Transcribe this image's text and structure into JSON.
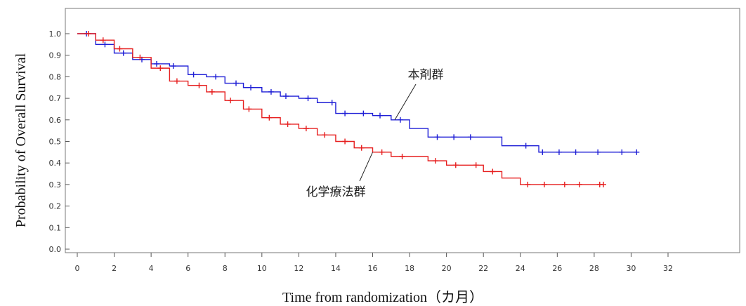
{
  "chart_data": {
    "type": "line",
    "chart_style": "step",
    "ylabel": "Probability of Overall Survival",
    "xlabel": "Time from randomization（カ月）",
    "xlim": [
      0,
      32
    ],
    "ylim": [
      0,
      1
    ],
    "x_ticks": [
      0,
      2,
      4,
      6,
      8,
      10,
      12,
      14,
      16,
      18,
      20,
      22,
      24,
      26,
      28,
      30,
      32
    ],
    "y_ticks": [
      0.0,
      0.1,
      0.2,
      0.3,
      0.4,
      0.5,
      0.6,
      0.7,
      0.8,
      0.9,
      1.0
    ],
    "y_tick_labels": [
      "0.0",
      "0.1",
      "0.2",
      "0.3",
      "0.4",
      "0.5",
      "0.6",
      "0.7",
      "0.8",
      "0.9",
      "1.0"
    ],
    "grid": false,
    "legend": "none",
    "series": [
      {
        "name": "本剤群",
        "color": "#1f1fd6",
        "x": [
          0,
          1,
          2,
          3,
          4,
          5,
          6,
          7,
          8,
          9,
          10,
          11,
          12,
          13,
          14,
          15,
          16,
          17,
          18,
          19,
          20,
          21,
          22,
          23,
          24,
          25,
          26,
          27,
          28,
          29,
          30.3
        ],
        "values": [
          1.0,
          0.95,
          0.91,
          0.88,
          0.86,
          0.85,
          0.81,
          0.8,
          0.77,
          0.75,
          0.73,
          0.71,
          0.7,
          0.68,
          0.63,
          0.63,
          0.62,
          0.6,
          0.56,
          0.52,
          0.52,
          0.52,
          0.52,
          0.48,
          0.48,
          0.45,
          0.45,
          0.45,
          0.45,
          0.45,
          0.45
        ],
        "censored_x": [
          0.5,
          1.5,
          2.5,
          3.5,
          4.3,
          5.2,
          6.3,
          7.5,
          8.6,
          9.4,
          10.5,
          11.3,
          12.5,
          13.8,
          14.5,
          15.5,
          16.4,
          17.5,
          19.5,
          20.4,
          21.3,
          24.3,
          25.2,
          26.1,
          27.0,
          28.2,
          29.5,
          30.3
        ]
      },
      {
        "name": "化学療法群",
        "color": "#e61e1e",
        "x": [
          0,
          1,
          2,
          3,
          4,
          5,
          6,
          7,
          8,
          9,
          10,
          11,
          12,
          13,
          14,
          15,
          16,
          17,
          18,
          19,
          20,
          21,
          22,
          23,
          24,
          25,
          26,
          27,
          28,
          28.5
        ],
        "values": [
          1.0,
          0.97,
          0.93,
          0.89,
          0.84,
          0.78,
          0.76,
          0.73,
          0.69,
          0.65,
          0.61,
          0.58,
          0.56,
          0.53,
          0.5,
          0.47,
          0.45,
          0.43,
          0.43,
          0.41,
          0.39,
          0.39,
          0.36,
          0.33,
          0.3,
          0.3,
          0.3,
          0.3,
          0.3,
          0.3
        ],
        "censored_x": [
          0.6,
          1.4,
          2.3,
          3.4,
          4.5,
          5.4,
          6.6,
          7.3,
          8.3,
          9.3,
          10.4,
          11.4,
          12.4,
          13.4,
          14.5,
          15.4,
          16.5,
          17.6,
          19.4,
          20.5,
          21.6,
          22.5,
          24.4,
          25.3,
          26.4,
          27.2,
          28.3,
          28.5
        ]
      }
    ],
    "annotations": [
      {
        "text": "本剤群",
        "series": "本剤群",
        "at_x": 17.2
      },
      {
        "text": "化学療法群",
        "series": "化学療法群",
        "at_x": 16.0
      }
    ]
  }
}
